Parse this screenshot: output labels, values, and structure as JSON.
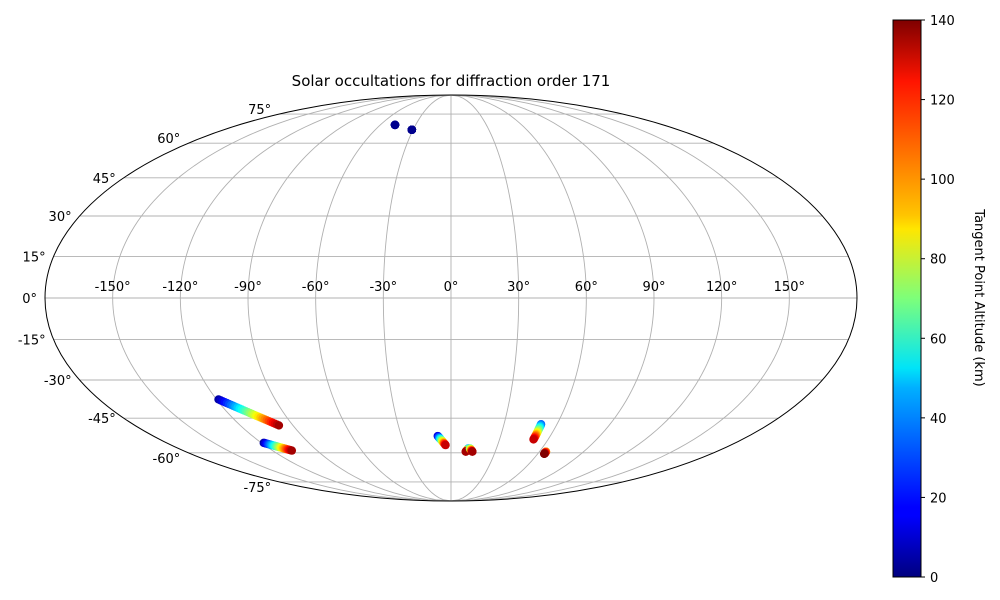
{
  "chart_data": {
    "type": "scatter",
    "projection": "mollweide",
    "title": "Solar occultations for diffraction order 171",
    "xlabel": "",
    "ylabel": "",
    "grid": true,
    "longitude_ticks": [
      "-150°",
      "-120°",
      "-90°",
      "-60°",
      "-30°",
      "0°",
      "30°",
      "60°",
      "90°",
      "120°",
      "150°"
    ],
    "latitude_ticks": [
      "75°",
      "60°",
      "45°",
      "30°",
      "15°",
      "0°",
      "-15°",
      "-30°",
      "-45°",
      "-60°",
      "-75°"
    ],
    "colorbar": {
      "label": "Tangent Point Altitude (km)",
      "colormap": "jet",
      "range": [
        0,
        140
      ],
      "ticks": [
        "0",
        "20",
        "40",
        "60",
        "80",
        "100",
        "120",
        "140"
      ]
    },
    "tracks": [
      {
        "lon_start": -47.5,
        "lat_start": 69.0,
        "lon_end": -47.5,
        "lat_end": 69.0,
        "alt_start": 2,
        "alt_end": 2
      },
      {
        "lon_start": -31.0,
        "lat_start": 66.5,
        "lon_end": -31.0,
        "lat_end": 66.5,
        "alt_start": 2,
        "alt_end": 2
      },
      {
        "lon_start": -119.0,
        "lat_start": -37.5,
        "lon_end": -98.0,
        "lat_end": -48.0,
        "alt_start": 5,
        "alt_end": 135
      },
      {
        "lon_start": -118.5,
        "lat_start": -55.5,
        "lon_end": -107.0,
        "lat_end": -59.0,
        "alt_start": 5,
        "alt_end": 135
      },
      {
        "lon_start": -8.0,
        "lat_start": -52.5,
        "lon_end": -3.5,
        "lat_end": -56.5,
        "alt_start": 10,
        "alt_end": 130
      },
      {
        "lon_start": 11.5,
        "lat_start": -58.0,
        "lon_end": 10.0,
        "lat_end": -59.5,
        "alt_start": 30,
        "alt_end": 135
      },
      {
        "lon_start": 12.5,
        "lat_start": -58.0,
        "lon_end": 14.5,
        "lat_end": -59.5,
        "alt_start": 60,
        "alt_end": 135
      },
      {
        "lon_start": 51.0,
        "lat_start": -47.5,
        "lon_end": 51.0,
        "lat_end": -54.0,
        "alt_start": 30,
        "alt_end": 130
      },
      {
        "lon_start": 64.5,
        "lat_start": -59.5,
        "lon_end": 64.5,
        "lat_end": -60.5,
        "alt_start": 100,
        "alt_end": 140
      }
    ]
  }
}
